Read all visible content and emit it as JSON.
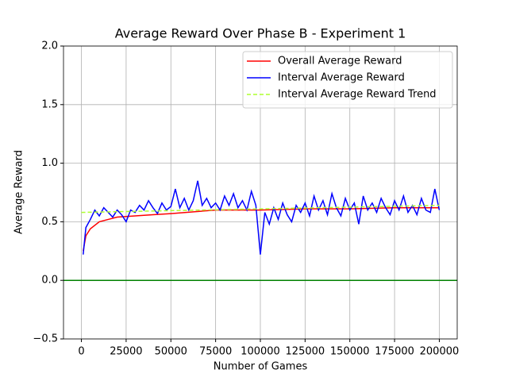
{
  "chart_data": {
    "type": "line",
    "title": "Average Reward Over Phase B - Experiment 1",
    "x_label": "Number of Games",
    "y_label": "Average Reward",
    "xlim": [
      -10000,
      210000
    ],
    "ylim": [
      -0.5,
      2.0
    ],
    "xticks": [
      0,
      25000,
      50000,
      75000,
      100000,
      125000,
      150000,
      175000,
      200000
    ],
    "yticks": [
      {
        "value": -0.5,
        "label": "−0.5"
      },
      {
        "value": 0,
        "label": "0.0"
      },
      0.5,
      {
        "value": 1,
        "label": "1.0"
      },
      1.5,
      {
        "value": 2,
        "label": "2.0"
      }
    ],
    "grid": true,
    "legend": "upper right",
    "reference_line": {
      "value": 0,
      "color": "#008000"
    },
    "series": [
      {
        "name": "Overall Average Reward",
        "color": "#ff0000",
        "style": "solid",
        "x": [
          1000,
          2500,
          5000,
          10000,
          15000,
          20000,
          30000,
          40000,
          50000,
          75000,
          100000,
          125000,
          150000,
          175000,
          200000
        ],
        "values": [
          0.25,
          0.38,
          0.44,
          0.5,
          0.52,
          0.54,
          0.55,
          0.56,
          0.57,
          0.6,
          0.6,
          0.61,
          0.61,
          0.62,
          0.62
        ]
      },
      {
        "name": "Interval Average Reward",
        "color": "#0000ff",
        "style": "solid",
        "x": [
          1000,
          2500,
          5000,
          7500,
          10000,
          12500,
          15000,
          17500,
          20000,
          22500,
          25000,
          27500,
          30000,
          32500,
          35000,
          37500,
          40000,
          42500,
          45000,
          47500,
          50000,
          52500,
          55000,
          57500,
          60000,
          62500,
          65000,
          67500,
          70000,
          72500,
          75000,
          77500,
          80000,
          82500,
          85000,
          87500,
          90000,
          92500,
          95000,
          97500,
          100000,
          102500,
          105000,
          107500,
          110000,
          112500,
          115000,
          117500,
          120000,
          122500,
          125000,
          127500,
          130000,
          132500,
          135000,
          137500,
          140000,
          142500,
          145000,
          147500,
          150000,
          152500,
          155000,
          157500,
          160000,
          162500,
          165000,
          167500,
          170000,
          172500,
          175000,
          177500,
          180000,
          182500,
          185000,
          187500,
          190000,
          192500,
          195000,
          197500,
          200000
        ],
        "values": [
          0.22,
          0.45,
          0.52,
          0.6,
          0.55,
          0.62,
          0.58,
          0.54,
          0.6,
          0.56,
          0.5,
          0.6,
          0.58,
          0.64,
          0.6,
          0.68,
          0.62,
          0.57,
          0.66,
          0.6,
          0.63,
          0.78,
          0.62,
          0.7,
          0.6,
          0.68,
          0.85,
          0.64,
          0.7,
          0.62,
          0.66,
          0.6,
          0.72,
          0.64,
          0.74,
          0.62,
          0.68,
          0.6,
          0.76,
          0.64,
          0.22,
          0.58,
          0.48,
          0.62,
          0.52,
          0.66,
          0.56,
          0.5,
          0.64,
          0.58,
          0.66,
          0.55,
          0.72,
          0.6,
          0.68,
          0.56,
          0.74,
          0.62,
          0.55,
          0.7,
          0.6,
          0.66,
          0.48,
          0.72,
          0.6,
          0.66,
          0.58,
          0.7,
          0.62,
          0.56,
          0.68,
          0.6,
          0.72,
          0.58,
          0.64,
          0.56,
          0.7,
          0.6,
          0.58,
          0.78,
          0.6
        ]
      },
      {
        "name": "Interval Average Reward Trend",
        "color": "#adff2f",
        "style": "dashed",
        "x": [
          0,
          200000
        ],
        "values": [
          0.58,
          0.64
        ]
      }
    ]
  }
}
